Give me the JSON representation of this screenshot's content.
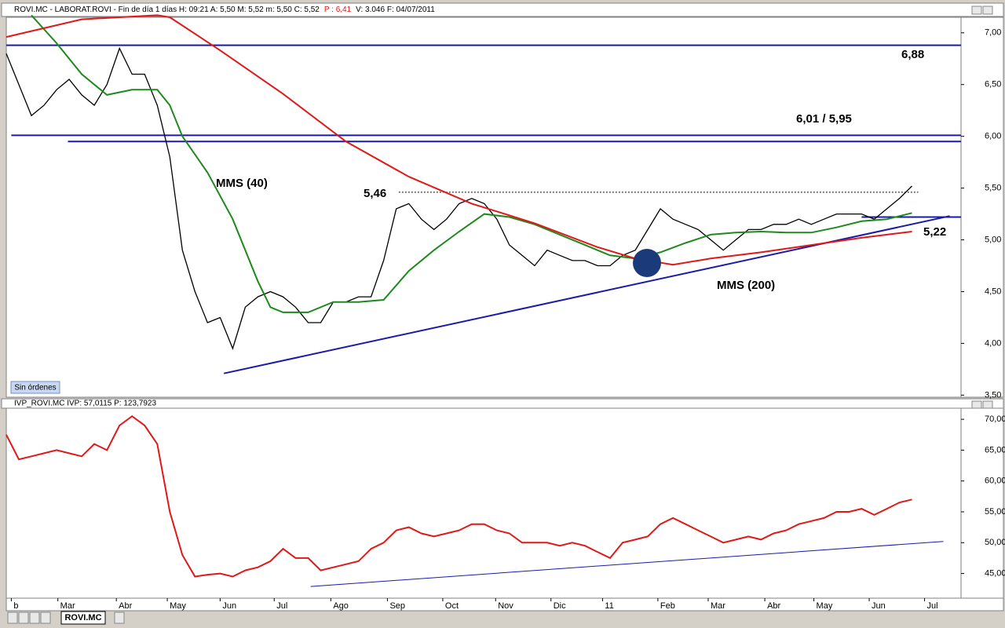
{
  "header": {
    "text": "ROVI.MC - LABORAT.ROVI - Fin de día 1 días  H: 09:21  A: 5,50  M: 5,52  m: 5,50  C: 5,52",
    "p": "P : 6,41",
    "rest": "V: 3.046  F: 04/07/2011"
  },
  "lower_header": "IVP_ROVI.MC  IVP: 57,0115  P: 123,7923",
  "button": "Sin órdenes",
  "tab": "ROVI.MC",
  "chart_data": [
    {
      "type": "line",
      "xlim": [
        0,
        75.9
      ],
      "ylim": [
        3.48,
        7.15
      ],
      "yticks": [
        {
          "value": 3.5,
          "label": "3,50"
        },
        {
          "value": 4,
          "label": "4,00"
        },
        {
          "value": 4.5,
          "label": "4,50"
        },
        {
          "value": 5,
          "label": "5,00"
        },
        {
          "value": 5.5,
          "label": "5,50"
        },
        {
          "value": 6,
          "label": "6,00"
        },
        {
          "value": 6.5,
          "label": "6,50"
        },
        {
          "value": 7,
          "label": "7,00"
        }
      ],
      "xticks": [
        {
          "value": 0.4,
          "label": "b"
        },
        {
          "value": 4.1,
          "label": "Mar"
        },
        {
          "value": 8.75,
          "label": "Abr"
        },
        {
          "value": 12.8,
          "label": "May"
        },
        {
          "value": 17,
          "label": "Jun"
        },
        {
          "value": 21.3,
          "label": "Jul"
        },
        {
          "value": 25.8,
          "label": "Ago"
        },
        {
          "value": 30.3,
          "label": "Sep"
        },
        {
          "value": 34.7,
          "label": "Oct"
        },
        {
          "value": 38.9,
          "label": "Nov"
        },
        {
          "value": 43.3,
          "label": "Dic"
        },
        {
          "value": 47.4,
          "label": "11"
        },
        {
          "value": 51.8,
          "label": "Feb"
        },
        {
          "value": 55.8,
          "label": "Mar"
        },
        {
          "value": 60.3,
          "label": "Abr"
        },
        {
          "value": 64.2,
          "label": "May"
        },
        {
          "value": 68.6,
          "label": "Jun"
        },
        {
          "value": 73,
          "label": "Jul"
        }
      ],
      "series": [
        {
          "name": "ROVI.MC",
          "color": "#000000",
          "x": [
            0,
            1,
            2,
            3,
            4,
            5,
            6,
            7,
            8,
            9,
            10,
            11,
            12,
            13,
            14,
            15,
            16,
            17,
            18,
            19,
            20,
            21,
            22,
            23,
            24,
            25,
            26,
            27,
            28,
            29,
            30,
            31,
            32,
            33,
            34,
            35,
            36,
            37,
            38,
            39,
            40,
            41,
            42,
            43,
            44,
            45,
            46,
            47,
            48,
            49,
            50,
            51,
            52,
            53,
            54,
            55,
            56,
            57,
            58,
            59,
            60,
            61,
            62,
            63,
            64,
            65,
            66,
            67,
            68,
            69,
            70,
            71,
            72
          ],
          "values": [
            6.8,
            6.5,
            6.2,
            6.3,
            6.45,
            6.55,
            6.4,
            6.3,
            6.5,
            6.85,
            6.6,
            6.6,
            6.3,
            5.8,
            4.9,
            4.5,
            4.2,
            4.25,
            3.95,
            4.35,
            4.45,
            4.5,
            4.45,
            4.35,
            4.2,
            4.2,
            4.4,
            4.4,
            4.45,
            4.45,
            4.8,
            5.3,
            5.35,
            5.2,
            5.1,
            5.2,
            5.35,
            5.4,
            5.35,
            5.2,
            4.95,
            4.85,
            4.75,
            4.9,
            4.85,
            4.8,
            4.8,
            4.75,
            4.75,
            4.85,
            4.9,
            5.1,
            5.3,
            5.2,
            5.15,
            5.1,
            5.0,
            4.9,
            5.0,
            5.1,
            5.1,
            5.15,
            5.15,
            5.2,
            5.15,
            5.2,
            5.25,
            5.25,
            5.25,
            5.2,
            5.3,
            5.4,
            5.52
          ]
        },
        {
          "name": "MMS (40)",
          "color": "#1e8a1e",
          "x": [
            2,
            4,
            6,
            8,
            10,
            12,
            13,
            14,
            16,
            18,
            20,
            21,
            22,
            24,
            26,
            28,
            30,
            32,
            34,
            36,
            38,
            40,
            42,
            44,
            46,
            48,
            50,
            52,
            54,
            56,
            58,
            60,
            62,
            64,
            66,
            68,
            70,
            72
          ],
          "values": [
            7.17,
            6.9,
            6.6,
            6.4,
            6.45,
            6.45,
            6.3,
            6.0,
            5.65,
            5.2,
            4.6,
            4.35,
            4.3,
            4.3,
            4.4,
            4.4,
            4.42,
            4.7,
            4.9,
            5.08,
            5.25,
            5.22,
            5.15,
            5.05,
            4.95,
            4.85,
            4.82,
            4.88,
            4.97,
            5.05,
            5.07,
            5.08,
            5.07,
            5.07,
            5.12,
            5.18,
            5.2,
            5.26
          ]
        },
        {
          "name": "MMS (200)",
          "color": "#e01818",
          "x": [
            0,
            6,
            12,
            13,
            17,
            22,
            27,
            32,
            37,
            42,
            47,
            50,
            53,
            56,
            60,
            64,
            68,
            72
          ],
          "values": [
            6.96,
            7.13,
            7.17,
            7.15,
            6.83,
            6.41,
            5.95,
            5.61,
            5.35,
            5.16,
            4.93,
            4.82,
            4.76,
            4.82,
            4.88,
            4.95,
            5.02,
            5.08
          ]
        }
      ],
      "levels": [
        {
          "value": 6.88,
          "x": [
            0,
            75.9
          ],
          "color": "#1a1aaa",
          "label": "6,88"
        },
        {
          "value": 6.01,
          "x": [
            0.4,
            75.9
          ],
          "color": "#1a1aaa",
          "label": "6,01 / 5,95"
        },
        {
          "value": 5.95,
          "x": [
            4.9,
            75.9
          ],
          "color": "#1a1aaa"
        },
        {
          "value": 5.46,
          "x": [
            31.2,
            72.5
          ],
          "color": "#000000",
          "dashed": true,
          "label": "5,46"
        },
        {
          "value": 5.22,
          "x": [
            68,
            75.9
          ],
          "color": "#1a1aaa",
          "label": "5,22"
        }
      ],
      "trendlines": [
        {
          "x": [
            17.3,
            75
          ],
          "values": [
            3.71,
            5.23
          ],
          "color": "#1a1aaa"
        }
      ],
      "annotations": [
        "MMS (40)",
        "MMS (200)"
      ]
    },
    {
      "type": "line",
      "xlim": [
        0,
        75.9
      ],
      "ylim": [
        41,
        71.8
      ],
      "yticks": [
        {
          "value": 45,
          "label": "45,00"
        },
        {
          "value": 50,
          "label": "50,00"
        },
        {
          "value": 55,
          "label": "55,00"
        },
        {
          "value": 60,
          "label": "60,00"
        },
        {
          "value": 65,
          "label": "65,00"
        },
        {
          "value": 70,
          "label": "70,00"
        }
      ],
      "series": [
        {
          "name": "IVP",
          "color": "#e01818",
          "x": [
            0,
            1,
            2,
            3,
            4,
            5,
            6,
            7,
            8,
            9,
            10,
            11,
            12,
            13,
            14,
            15,
            16,
            17,
            18,
            19,
            20,
            21,
            22,
            23,
            24,
            25,
            26,
            27,
            28,
            29,
            30,
            31,
            32,
            33,
            34,
            35,
            36,
            37,
            38,
            39,
            40,
            41,
            42,
            43,
            44,
            45,
            46,
            47,
            48,
            49,
            50,
            51,
            52,
            53,
            54,
            55,
            56,
            57,
            58,
            59,
            60,
            61,
            62,
            63,
            64,
            65,
            66,
            67,
            68,
            69,
            70,
            71,
            72
          ],
          "values": [
            67.5,
            63.5,
            64,
            64.5,
            65,
            64.5,
            64,
            66,
            65,
            69,
            70.5,
            69,
            66,
            55,
            48,
            44.5,
            44.8,
            45,
            44.5,
            45.5,
            46,
            47,
            49,
            47.5,
            47.5,
            45.5,
            46,
            46.5,
            47,
            49,
            50,
            52,
            52.5,
            51.5,
            51,
            51.5,
            52,
            53,
            53,
            52,
            51.5,
            50,
            50,
            50,
            49.5,
            50,
            49.5,
            48.5,
            47.5,
            50,
            50.5,
            51,
            53,
            54,
            53,
            52,
            51,
            50,
            50.5,
            51,
            50.5,
            51.5,
            52,
            53,
            53.5,
            54,
            55,
            55,
            55.5,
            54.5,
            55.5,
            56.5,
            57
          ]
        }
      ],
      "trendlines": [
        {
          "x": [
            24.2,
            74.5
          ],
          "values": [
            42.9,
            50.2
          ],
          "color": "#1a1aaa"
        }
      ]
    }
  ]
}
